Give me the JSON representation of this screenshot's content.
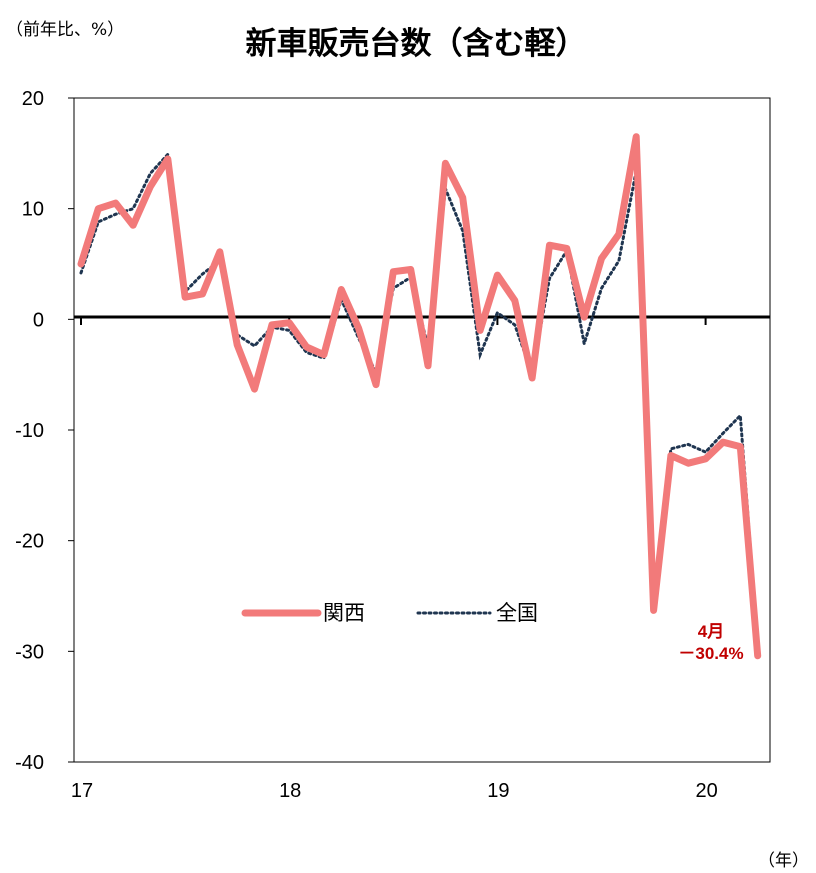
{
  "chart_data": {
    "type": "line",
    "title": "新車販売台数（含む軽）",
    "ylabel": "（前年比、%）",
    "xlabel": "（年）",
    "ylim": [
      -40,
      20
    ],
    "yticks": [
      "20",
      "10",
      "0",
      "-10",
      "-20",
      "-30",
      "-40"
    ],
    "xtick_labels": [
      "17",
      "18",
      "19",
      "20"
    ],
    "legend_position": "center",
    "annotation": {
      "line1": "4月",
      "line2": "－30.4%"
    },
    "colors": {
      "kansai": "#f27a7a",
      "national": "#1f3550",
      "annotation": "#c00000"
    },
    "series": [
      {
        "name": "関西",
        "values": [
          5.0,
          10.0,
          10.5,
          8.5,
          12.0,
          14.5,
          2.0,
          2.3,
          6.1,
          -2.3,
          -6.3,
          -0.5,
          -0.3,
          -2.5,
          -3.2,
          2.7,
          -0.8,
          -5.9,
          4.3,
          4.5,
          -4.2,
          14.1,
          11.0,
          -1.0,
          4.0,
          1.7,
          -5.3,
          6.7,
          6.4,
          0.2,
          5.5,
          7.7,
          16.5,
          -26.3,
          -12.3,
          -13.0,
          -12.6,
          -11.1,
          -11.5,
          -30.4
        ]
      },
      {
        "name": "全国",
        "values": [
          4.2,
          8.8,
          9.5,
          10.0,
          13.2,
          14.9,
          2.5,
          4.1,
          5.3,
          -1.4,
          -2.4,
          -0.7,
          -1.0,
          -3.0,
          -3.5,
          1.8,
          -1.7,
          -4.8,
          2.8,
          3.8,
          -2.5,
          11.8,
          8.0,
          -3.2,
          0.6,
          -0.5,
          -4.9,
          3.7,
          6.2,
          -2.2,
          2.8,
          5.3,
          13.4,
          -25.0,
          -11.7,
          -11.3,
          -12.0,
          -10.3,
          -8.7,
          -29.3
        ]
      }
    ]
  }
}
